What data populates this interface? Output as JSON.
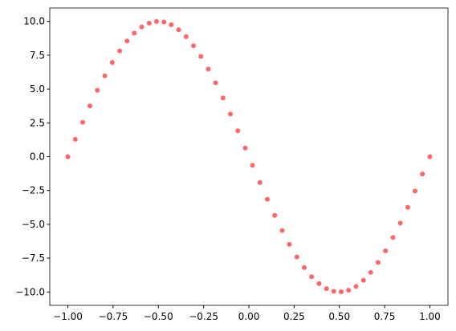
{
  "chart_data": {
    "type": "scatter",
    "series": [
      {
        "color": "#ff0000",
        "alpha": 0.6,
        "x": [
          -1,
          -0.959,
          -0.918,
          -0.878,
          -0.837,
          -0.796,
          -0.755,
          -0.714,
          -0.673,
          -0.633,
          -0.592,
          -0.551,
          -0.51,
          -0.469,
          -0.429,
          -0.388,
          -0.347,
          -0.306,
          -0.265,
          -0.224,
          -0.184,
          -0.143,
          -0.102,
          -0.061,
          -0.02,
          0.02,
          0.061,
          0.102,
          0.143,
          0.184,
          0.224,
          0.265,
          0.306,
          0.347,
          0.388,
          0.429,
          0.469,
          0.51,
          0.551,
          0.592,
          0.633,
          0.673,
          0.714,
          0.755,
          0.796,
          0.837,
          0.878,
          0.918,
          0.959,
          1
        ],
        "values": [
          0,
          1.28,
          2.54,
          3.75,
          4.91,
          5.98,
          6.96,
          7.82,
          8.55,
          9.14,
          9.59,
          9.87,
          9.99,
          9.95,
          9.75,
          9.38,
          8.87,
          8.2,
          7.41,
          6.48,
          5.46,
          4.34,
          3.15,
          1.91,
          0.64,
          -0.64,
          -1.91,
          -3.15,
          -4.34,
          -5.46,
          -6.48,
          -7.41,
          -8.2,
          -8.87,
          -9.38,
          -9.75,
          -9.95,
          -9.99,
          -9.87,
          -9.59,
          -9.14,
          -8.55,
          -7.82,
          -6.96,
          -5.98,
          -4.91,
          -3.75,
          -2.54,
          -1.28,
          0
        ]
      }
    ],
    "xlim": [
      -1.1,
      1.1
    ],
    "ylim": [
      -10.99,
      10.99
    ],
    "xticks": [
      {
        "value": -1,
        "label": "−1.00"
      },
      {
        "value": -0.75,
        "label": "−0.75"
      },
      {
        "value": -0.5,
        "label": "−0.50"
      },
      {
        "value": -0.25,
        "label": "−0.25"
      },
      {
        "value": 0,
        "label": "0.00"
      },
      {
        "value": 0.25,
        "label": "0.25"
      },
      {
        "value": 0.5,
        "label": "0.50"
      },
      {
        "value": 0.75,
        "label": "0.75"
      },
      {
        "value": 1,
        "label": "1.00"
      }
    ],
    "yticks": [
      {
        "value": -10,
        "label": "−10.0"
      },
      {
        "value": -7.5,
        "label": "−7.5"
      },
      {
        "value": -5,
        "label": "−5.0"
      },
      {
        "value": -2.5,
        "label": "−2.5"
      },
      {
        "value": 0,
        "label": "0.0"
      },
      {
        "value": 2.5,
        "label": "2.5"
      },
      {
        "value": 5,
        "label": "5.0"
      },
      {
        "value": 7.5,
        "label": "7.5"
      },
      {
        "value": 10,
        "label": "10.0"
      }
    ],
    "grid": false
  }
}
